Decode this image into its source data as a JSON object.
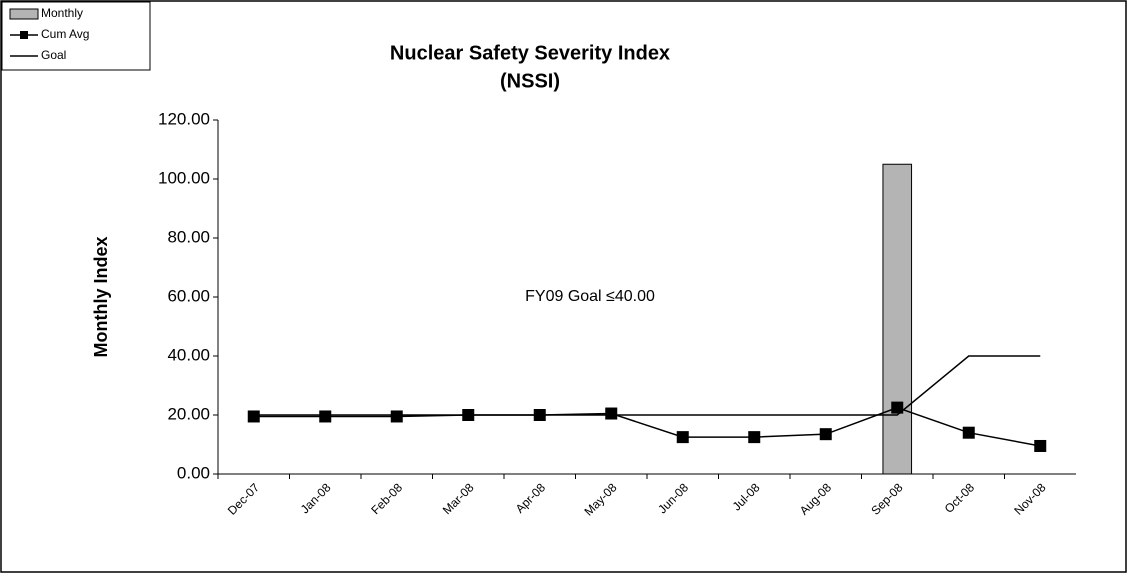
{
  "chart_data": {
    "type": "bar_line",
    "title": "Nuclear Safety Severity Index",
    "subtitle": "(NSSI)",
    "y_label": "Monthly Index",
    "annotation": "FY09 Goal ≤40.00",
    "categories": [
      "Dec-07",
      "Jan-08",
      "Feb-08",
      "Mar-08",
      "Apr-08",
      "May-08",
      "Jun-08",
      "Jul-08",
      "Aug-08",
      "Sep-08",
      "Oct-08",
      "Nov-08"
    ],
    "series": [
      {
        "name": "Monthly",
        "type": "bar",
        "color": "#b4b4b4",
        "values": [
          null,
          null,
          null,
          null,
          null,
          null,
          null,
          null,
          null,
          105,
          null,
          null
        ]
      },
      {
        "name": "Cum Avg",
        "type": "line",
        "marker": "square",
        "color": "#000000",
        "values": [
          19.5,
          19.5,
          19.5,
          20,
          20,
          20.5,
          12.5,
          12.5,
          13.5,
          22.5,
          14,
          9.5
        ]
      },
      {
        "name": "Goal",
        "type": "line",
        "color": "#000000",
        "values": [
          20,
          20,
          20,
          20,
          20,
          20,
          20,
          20,
          20,
          20,
          40,
          40
        ]
      }
    ],
    "ylim": [
      0,
      120
    ],
    "yticks": [
      {
        "value": 0,
        "label": "0.00"
      },
      {
        "value": 20,
        "label": "20.00"
      },
      {
        "value": 40,
        "label": "40.00"
      },
      {
        "value": 60,
        "label": "60.00"
      },
      {
        "value": 80,
        "label": "80.00"
      },
      {
        "value": 100,
        "label": "100.00"
      },
      {
        "value": 120,
        "label": "120.00"
      }
    ],
    "grid": false,
    "legend": "top-left"
  }
}
